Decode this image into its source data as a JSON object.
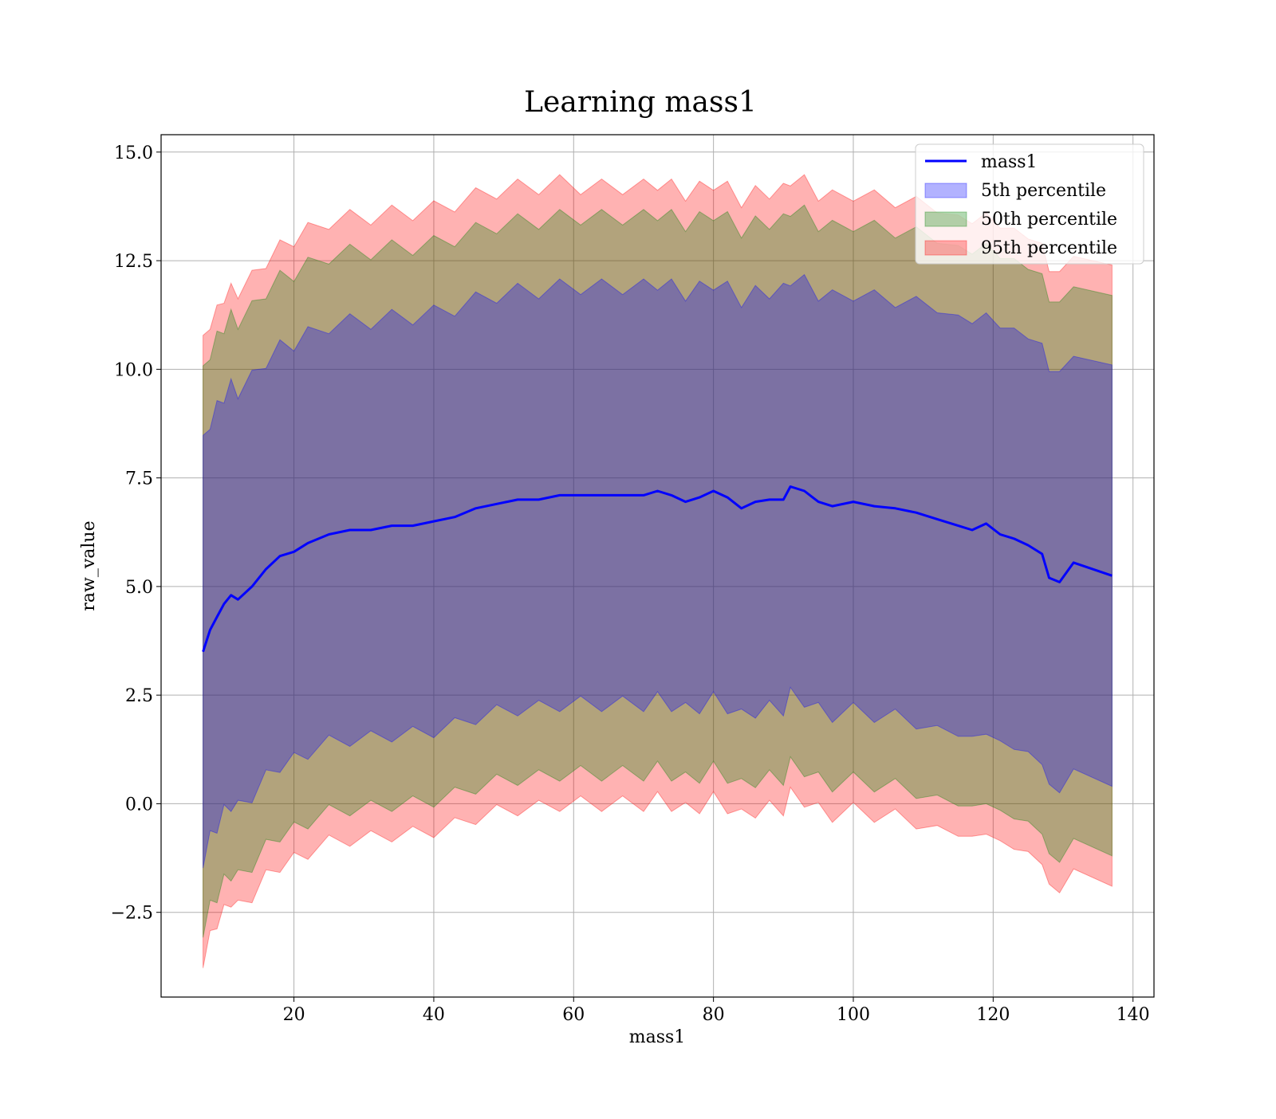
{
  "chart_data": {
    "type": "line",
    "title": "Learning mass1",
    "xlabel": "mass1",
    "ylabel": "raw_value",
    "xlim": [
      1,
      143
    ],
    "ylim": [
      -4.45,
      15.4
    ],
    "xticks": [
      20,
      40,
      60,
      80,
      100,
      120,
      140
    ],
    "yticks": [
      -2.5,
      0.0,
      2.5,
      5.0,
      7.5,
      10.0,
      12.5,
      15.0
    ],
    "ytick_labels": [
      "−2.5",
      "0.0",
      "2.5",
      "5.0",
      "7.5",
      "10.0",
      "12.5",
      "15.0"
    ],
    "grid": true,
    "legend_position": "top-right",
    "line": {
      "name": "mass1",
      "color": "#0000ff",
      "x": [
        7,
        8,
        9,
        10,
        11,
        12,
        14,
        16,
        18,
        20,
        22,
        25,
        28,
        31,
        34,
        37,
        40,
        43,
        46,
        49,
        52,
        55,
        58,
        61,
        64,
        67,
        70,
        72,
        74,
        76,
        78,
        80,
        82,
        84,
        86,
        88,
        90,
        91,
        93,
        95,
        97,
        100,
        103,
        106,
        109,
        112,
        115,
        117,
        119,
        121,
        123,
        125,
        127,
        128,
        129.5,
        131.5,
        137
      ],
      "y": [
        3.5,
        4.0,
        4.3,
        4.6,
        4.8,
        4.7,
        5.0,
        5.4,
        5.7,
        5.8,
        6.0,
        6.2,
        6.3,
        6.3,
        6.4,
        6.4,
        6.5,
        6.6,
        6.8,
        6.9,
        7.0,
        7.0,
        7.1,
        7.1,
        7.1,
        7.1,
        7.1,
        7.2,
        7.1,
        6.95,
        7.05,
        7.2,
        7.05,
        6.8,
        6.95,
        7.0,
        7.0,
        7.3,
        7.2,
        6.95,
        6.85,
        6.95,
        6.85,
        6.8,
        6.7,
        6.55,
        6.4,
        6.3,
        6.45,
        6.2,
        6.1,
        5.95,
        5.75,
        5.2,
        5.1,
        5.55,
        5.25
      ]
    },
    "bands": [
      {
        "name": "95th percentile",
        "color": "#ff0000",
        "alpha": 0.3,
        "upper_offset": [
          7.1,
          7.1,
          7.0,
          7.1,
          7.0,
          7.1,
          7.1,
          7.1,
          7.1,
          7.2,
          7.2,
          7.2,
          7.2,
          7.2,
          7.2,
          7.2,
          7.2,
          7.2,
          7.2,
          7.2,
          7.2,
          7.2,
          7.2,
          7.1,
          7.1,
          7.1,
          7.1,
          7.1,
          7.1,
          7.1,
          7.1,
          7.1,
          7.1,
          7.1,
          7.1,
          7.1,
          7.1,
          7.1,
          7.1,
          7.1,
          7.1,
          7.1,
          7.1,
          7.1,
          7.1,
          7.1,
          7.1,
          7.1,
          7.1,
          7.1,
          7.1,
          7.1,
          7.1,
          7.1,
          7.1,
          7.1,
          7.1
        ],
        "lower_offset": [
          7.1,
          7.1,
          7.0,
          7.1,
          7.0,
          7.1,
          7.1,
          7.1,
          7.1,
          7.1,
          7.1,
          7.1,
          7.1,
          7.1,
          7.1,
          7.1,
          7.1,
          7.1,
          7.1,
          7.1,
          7.1,
          7.1,
          7.1,
          7.1,
          7.1,
          7.1,
          7.1,
          7.1,
          7.1,
          7.1,
          7.1,
          7.1,
          7.1,
          7.1,
          7.1,
          7.1,
          7.1,
          7.1,
          7.1,
          7.1,
          7.1,
          7.1,
          7.1,
          7.1,
          7.1,
          7.1,
          7.1,
          7.1,
          7.1,
          7.1,
          7.1,
          7.1,
          7.1,
          7.1,
          7.1,
          7.1,
          7.1
        ]
      },
      {
        "name": "50th percentile",
        "color": "#008000",
        "alpha": 0.3,
        "upper_offset": [
          6.4,
          6.4,
          6.4,
          6.4,
          6.4,
          6.4,
          6.4,
          6.4,
          6.4,
          6.4,
          6.4,
          6.4,
          6.4,
          6.4,
          6.4,
          6.4,
          6.4,
          6.4,
          6.4,
          6.4,
          6.4,
          6.4,
          6.4,
          6.4,
          6.4,
          6.4,
          6.4,
          6.4,
          6.4,
          6.4,
          6.4,
          6.4,
          6.4,
          6.4,
          6.4,
          6.4,
          6.4,
          6.4,
          6.4,
          6.4,
          6.4,
          6.4,
          6.4,
          6.4,
          6.4,
          6.4,
          6.4,
          6.4,
          6.4,
          6.4,
          6.4,
          6.4,
          6.4,
          6.4,
          6.4,
          6.4,
          6.4
        ],
        "lower_offset": [
          6.4,
          6.4,
          6.4,
          6.4,
          6.4,
          6.4,
          6.4,
          6.4,
          6.4,
          6.4,
          6.4,
          6.4,
          6.4,
          6.4,
          6.4,
          6.4,
          6.4,
          6.4,
          6.4,
          6.4,
          6.4,
          6.4,
          6.4,
          6.4,
          6.4,
          6.4,
          6.4,
          6.4,
          6.4,
          6.4,
          6.4,
          6.4,
          6.4,
          6.4,
          6.4,
          6.4,
          6.4,
          6.4,
          6.4,
          6.4,
          6.4,
          6.4,
          6.4,
          6.4,
          6.4,
          6.4,
          6.4,
          6.4,
          6.4,
          6.4,
          6.4,
          6.4,
          6.4,
          6.4,
          6.4,
          6.4,
          6.4
        ]
      },
      {
        "name": "5th percentile",
        "color": "#0000ff",
        "alpha": 0.3,
        "upper_offset": [
          4.8,
          4.8,
          4.8,
          4.8,
          4.8,
          4.8,
          4.8,
          4.8,
          4.8,
          4.8,
          4.8,
          4.8,
          4.8,
          4.8,
          4.8,
          4.8,
          4.8,
          4.8,
          4.8,
          4.8,
          4.8,
          4.8,
          4.8,
          4.8,
          4.8,
          4.8,
          4.8,
          4.8,
          4.8,
          4.8,
          4.8,
          4.8,
          4.8,
          4.8,
          4.8,
          4.8,
          4.8,
          4.8,
          4.8,
          4.8,
          4.8,
          4.8,
          4.8,
          4.8,
          4.8,
          4.8,
          4.8,
          4.8,
          4.8,
          4.8,
          4.8,
          4.8,
          4.8,
          4.8,
          4.8,
          4.8,
          4.8
        ],
        "lower_offset": [
          4.8,
          4.8,
          4.8,
          4.8,
          4.8,
          4.8,
          4.8,
          4.8,
          4.8,
          4.8,
          4.8,
          4.8,
          4.8,
          4.8,
          4.8,
          4.8,
          4.8,
          4.8,
          4.8,
          4.8,
          4.8,
          4.8,
          4.8,
          4.8,
          4.8,
          4.8,
          4.8,
          4.8,
          4.8,
          4.8,
          4.8,
          4.8,
          4.8,
          4.8,
          4.8,
          4.8,
          4.8,
          4.8,
          4.8,
          4.8,
          4.8,
          4.8,
          4.8,
          4.8,
          4.8,
          4.8,
          4.8,
          4.8,
          4.8,
          4.8,
          4.8,
          4.8,
          4.8,
          4.8,
          4.8,
          4.8,
          4.8
        ]
      }
    ],
    "legend": [
      {
        "label": "mass1",
        "kind": "line",
        "color": "#0000ff"
      },
      {
        "label": "5th percentile",
        "kind": "patch",
        "color": "#0000ff"
      },
      {
        "label": "50th percentile",
        "kind": "patch",
        "color": "#008000"
      },
      {
        "label": "95th percentile",
        "kind": "patch",
        "color": "#ff0000"
      }
    ]
  }
}
